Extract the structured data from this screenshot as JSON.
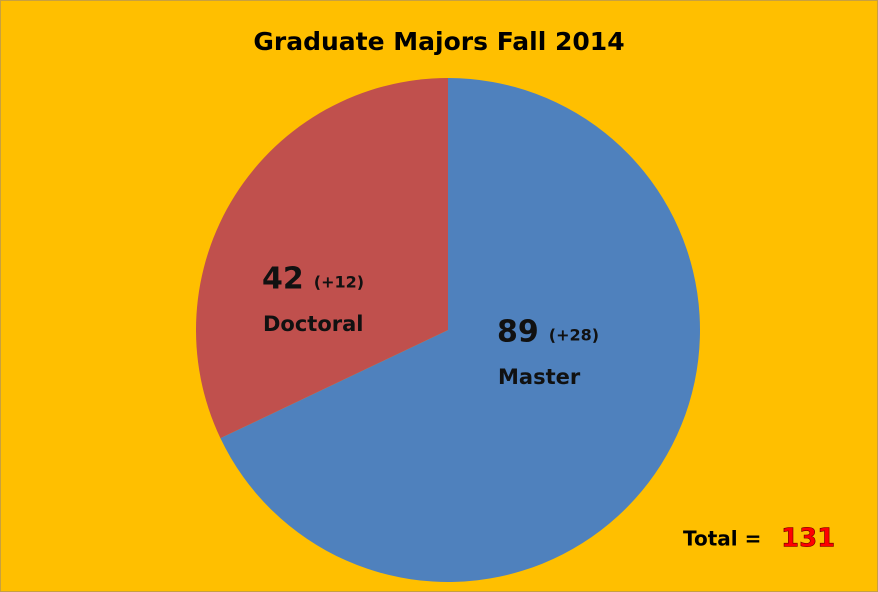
{
  "chart_data": {
    "type": "pie",
    "title": "Graduate Majors Fall 2014",
    "categories": [
      "Master",
      "Doctoral"
    ],
    "values": [
      89,
      42
    ],
    "colors": [
      "#4f81bd",
      "#c0504d"
    ],
    "changes": [
      "(+28)",
      "(+12)"
    ],
    "total_label": "Total =",
    "total": 131
  }
}
